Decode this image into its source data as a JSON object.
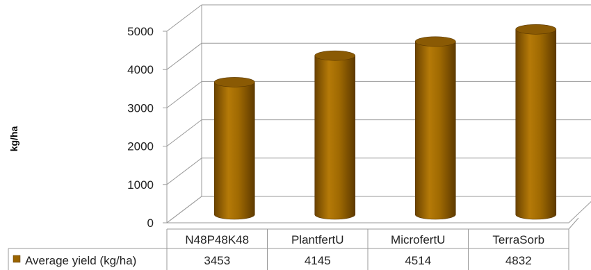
{
  "chart_data": {
    "type": "bar",
    "style": "3d-cylinder",
    "categories": [
      "N48P48K48",
      "PlantfertU",
      "MicrofertU",
      "TerraSorb"
    ],
    "series": [
      {
        "name": "Average yield (kg/ha)",
        "values": [
          3453,
          4145,
          4514,
          4832
        ],
        "color": "#9a6400"
      }
    ],
    "title": "",
    "xlabel": "",
    "ylabel": "kg/ha",
    "ylim": [
      0,
      5000
    ],
    "yticks": [
      "0",
      "1000",
      "2000",
      "3000",
      "4000",
      "5000"
    ],
    "grid": true,
    "data_table": true
  }
}
